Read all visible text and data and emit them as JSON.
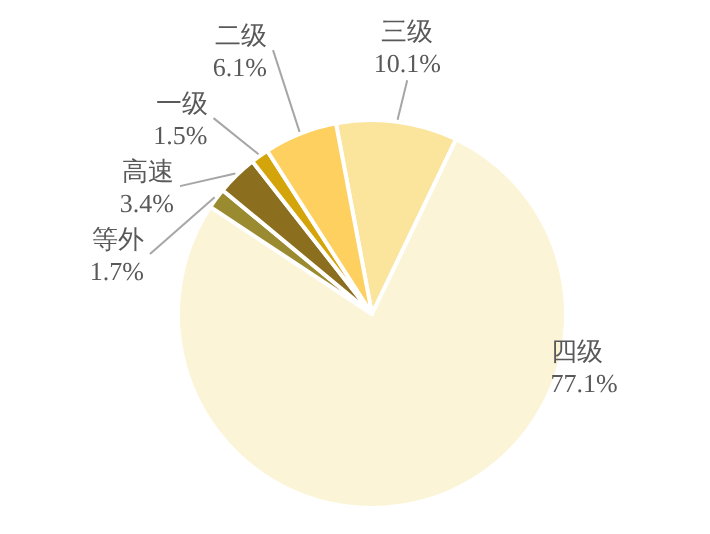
{
  "chart_data": {
    "type": "pie",
    "categories": [
      "三级",
      "四级",
      "等外",
      "高速",
      "一级",
      "二级"
    ],
    "values": [
      10.1,
      77.1,
      1.7,
      3.4,
      1.5,
      6.1
    ],
    "value_labels": [
      "10.1%",
      "77.1%",
      "1.7%",
      "3.4%",
      "1.5%",
      "6.1%"
    ],
    "colors": [
      "#fbe49b",
      "#fcf4d6",
      "#9a8a30",
      "#8b6f1e",
      "#d4a50a",
      "#fdd05f"
    ]
  }
}
